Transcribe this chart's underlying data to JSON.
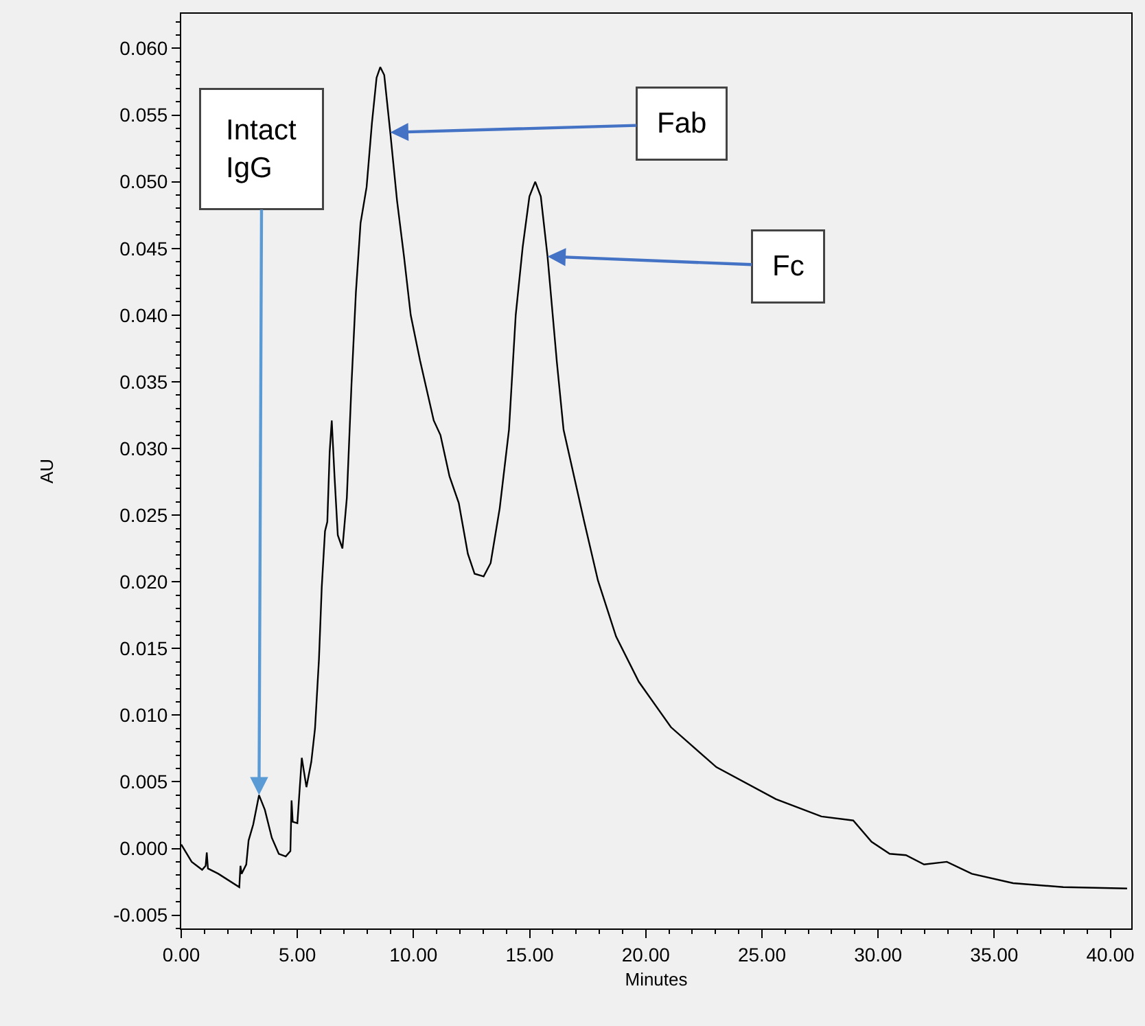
{
  "chart_data": {
    "type": "line",
    "xlabel": "Minutes",
    "ylabel": "AU",
    "xlim": [
      0,
      40.9
    ],
    "ylim": [
      -0.006,
      0.0626
    ],
    "xticks": [
      {
        "value": 0,
        "label": "0.00"
      },
      {
        "value": 5,
        "label": "5.00"
      },
      {
        "value": 10,
        "label": "10.00"
      },
      {
        "value": 15,
        "label": "15.00"
      },
      {
        "value": 20,
        "label": "20.00"
      },
      {
        "value": 25,
        "label": "25.00"
      },
      {
        "value": 30,
        "label": "30.00"
      },
      {
        "value": 35,
        "label": "35.00"
      },
      {
        "value": 40,
        "label": "40.00"
      }
    ],
    "yticks": [
      {
        "value": -0.005,
        "label": "-0.005"
      },
      {
        "value": 0,
        "label": "0.000"
      },
      {
        "value": 0.005,
        "label": "0.005"
      },
      {
        "value": 0.01,
        "label": "0.010"
      },
      {
        "value": 0.015,
        "label": "0.015"
      },
      {
        "value": 0.02,
        "label": "0.020"
      },
      {
        "value": 0.025,
        "label": "0.025"
      },
      {
        "value": 0.03,
        "label": "0.030"
      },
      {
        "value": 0.035,
        "label": "0.035"
      },
      {
        "value": 0.04,
        "label": "0.040"
      },
      {
        "value": 0.045,
        "label": "0.045"
      },
      {
        "value": 0.05,
        "label": "0.050"
      },
      {
        "value": 0.055,
        "label": "0.055"
      },
      {
        "value": 0.06,
        "label": "0.060"
      }
    ],
    "grid": false,
    "marker": "none",
    "line_style": "solid",
    "series": [
      {
        "color": "#000000",
        "x": [
          0,
          0.45,
          0.9,
          1.05,
          1.1,
          1.15,
          1.6,
          2.5,
          2.55,
          2.6,
          2.8,
          2.9,
          3.1,
          3.35,
          3.6,
          3.9,
          4.2,
          4.5,
          4.7,
          4.75,
          4.8,
          5.0,
          5.19,
          5.39,
          5.6,
          5.76,
          5.93,
          6.05,
          6.19,
          6.29,
          6.39,
          6.48,
          6.6,
          6.74,
          6.94,
          7.13,
          7.33,
          7.52,
          7.72,
          7.98,
          8.21,
          8.41,
          8.57,
          8.74,
          9.0,
          9.29,
          9.59,
          9.88,
          10.28,
          10.87,
          11.16,
          11.55,
          11.95,
          12.34,
          12.63,
          13.02,
          13.32,
          13.71,
          14.11,
          14.4,
          14.7,
          14.99,
          15.24,
          15.48,
          15.77,
          16.17,
          16.46,
          16.95,
          17.35,
          17.94,
          18.72,
          19.7,
          21.08,
          23.04,
          25.6,
          27.56,
          28.93,
          29.72,
          30.5,
          31.2,
          31.98,
          32.96,
          34.04,
          35.81,
          37.97,
          40.72
        ],
        "values": [
          0.0003,
          -0.001,
          -0.0016,
          -0.0013,
          -0.0003,
          -0.0015,
          -0.0019,
          -0.0029,
          -0.0013,
          -0.0019,
          -0.0012,
          0.0006,
          0.0018,
          0.004,
          0.0029,
          0.0008,
          -0.0004,
          -0.0006,
          -0.0002,
          0.0036,
          0.002,
          0.0019,
          0.0068,
          0.0046,
          0.0065,
          0.009,
          0.0142,
          0.0196,
          0.0238,
          0.0245,
          0.0297,
          0.0321,
          0.0279,
          0.0235,
          0.0225,
          0.0263,
          0.0348,
          0.0417,
          0.0469,
          0.0496,
          0.0544,
          0.0578,
          0.0586,
          0.058,
          0.0537,
          0.0486,
          0.0444,
          0.04,
          0.0366,
          0.0321,
          0.031,
          0.0279,
          0.0259,
          0.0221,
          0.0206,
          0.0204,
          0.0214,
          0.0255,
          0.0314,
          0.04,
          0.0451,
          0.0489,
          0.05,
          0.0489,
          0.0444,
          0.0365,
          0.0314,
          0.0276,
          0.0245,
          0.0201,
          0.0159,
          0.0125,
          0.0091,
          0.0061,
          0.0037,
          0.0024,
          0.0021,
          0.0005,
          -0.0004,
          -0.0005,
          -0.0012,
          -0.001,
          -0.0019,
          -0.0026,
          -0.0029,
          -0.003
        ]
      }
    ],
    "annotations": [
      {
        "text": "Intact\nIgG",
        "x": 3.35,
        "y": 0.004
      },
      {
        "text": "Fab",
        "x": 9.0,
        "y": 0.0537
      },
      {
        "text": "Fc",
        "x": 15.77,
        "y": 0.0444
      }
    ]
  }
}
